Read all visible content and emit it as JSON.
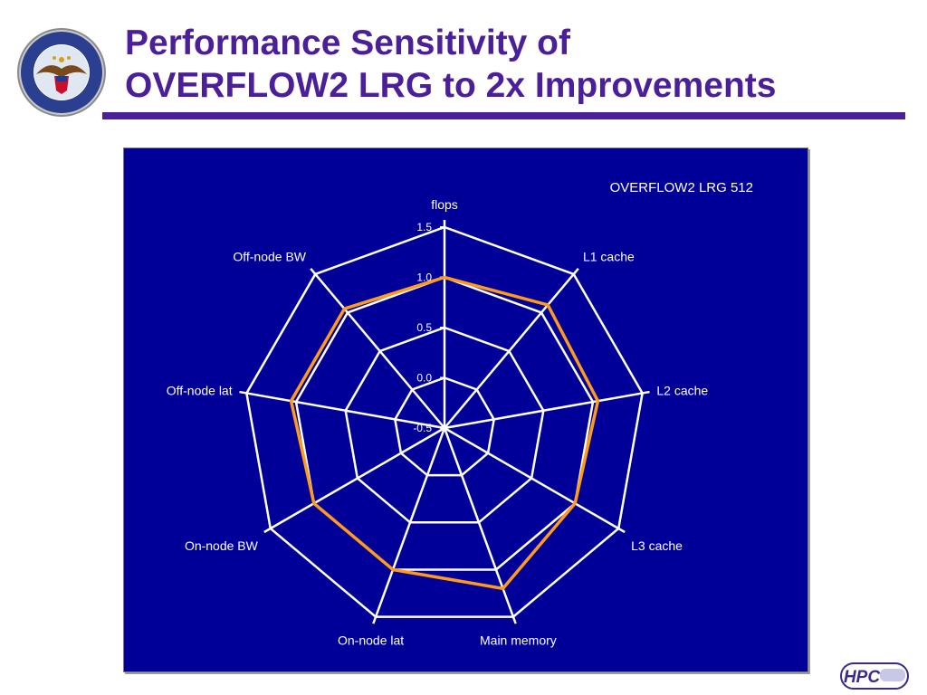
{
  "header": {
    "title_line1": "Performance Sensitivity of",
    "title_line2": "OVERFLOW2 LRG to 2x Improvements",
    "title_color": "#4b1f99",
    "rule_color": "#4b1f99"
  },
  "logos": {
    "left": "department-of-defense-seal",
    "left_text": "DEPARTMENT OF DEFENSE · UNITED STATES OF AMERICA",
    "right": "hpc-modernization-logo",
    "right_text": "HPC"
  },
  "chart_data": {
    "type": "radar",
    "title": "OVERFLOW2 LRG 512",
    "axes": [
      "flops",
      "L1 cache",
      "L2 cache",
      "L3 cache",
      "Main memory",
      "On-node lat",
      "On-node BW",
      "Off-node lat",
      "Off-node BW"
    ],
    "rlim": [
      -0.5,
      1.5
    ],
    "ticks": [
      -0.5,
      0.0,
      0.5,
      1.0,
      1.5
    ],
    "tick_labels": [
      "-0.5",
      "0.0",
      "0.5",
      "1.0",
      "1.5"
    ],
    "grid": true,
    "series": [
      {
        "name": "",
        "values": [
          1.0,
          1.1,
          1.05,
          1.0,
          1.2,
          1.0,
          1.0,
          1.05,
          1.05
        ],
        "color": "#ff9a1a"
      }
    ],
    "background_color": "#000099",
    "grid_color": "#ffffff"
  }
}
